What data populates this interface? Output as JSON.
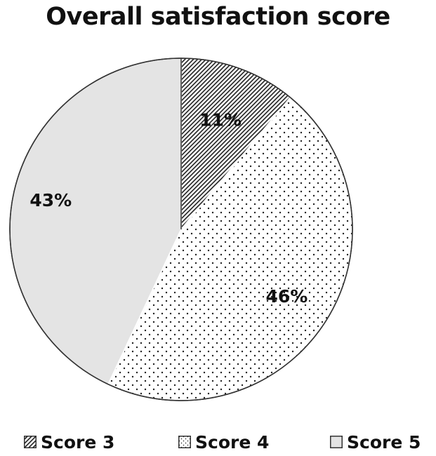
{
  "chart_data": {
    "type": "pie",
    "title": "Overall satisfaction score",
    "categories": [
      "Score 3",
      "Score 4",
      "Score 5"
    ],
    "values": [
      11,
      46,
      43
    ],
    "labels": [
      "11%",
      "46%",
      "43%"
    ],
    "start_angle_deg": 0,
    "direction": "clockwise",
    "legend_position": "bottom",
    "fills": [
      "diagonal-hatch",
      "dotted",
      "solid-light-gray"
    ],
    "colors": {
      "outline": "#333333",
      "solid_fill": "#e4e4e4",
      "pattern_ink": "#222222",
      "background": "#ffffff"
    }
  }
}
